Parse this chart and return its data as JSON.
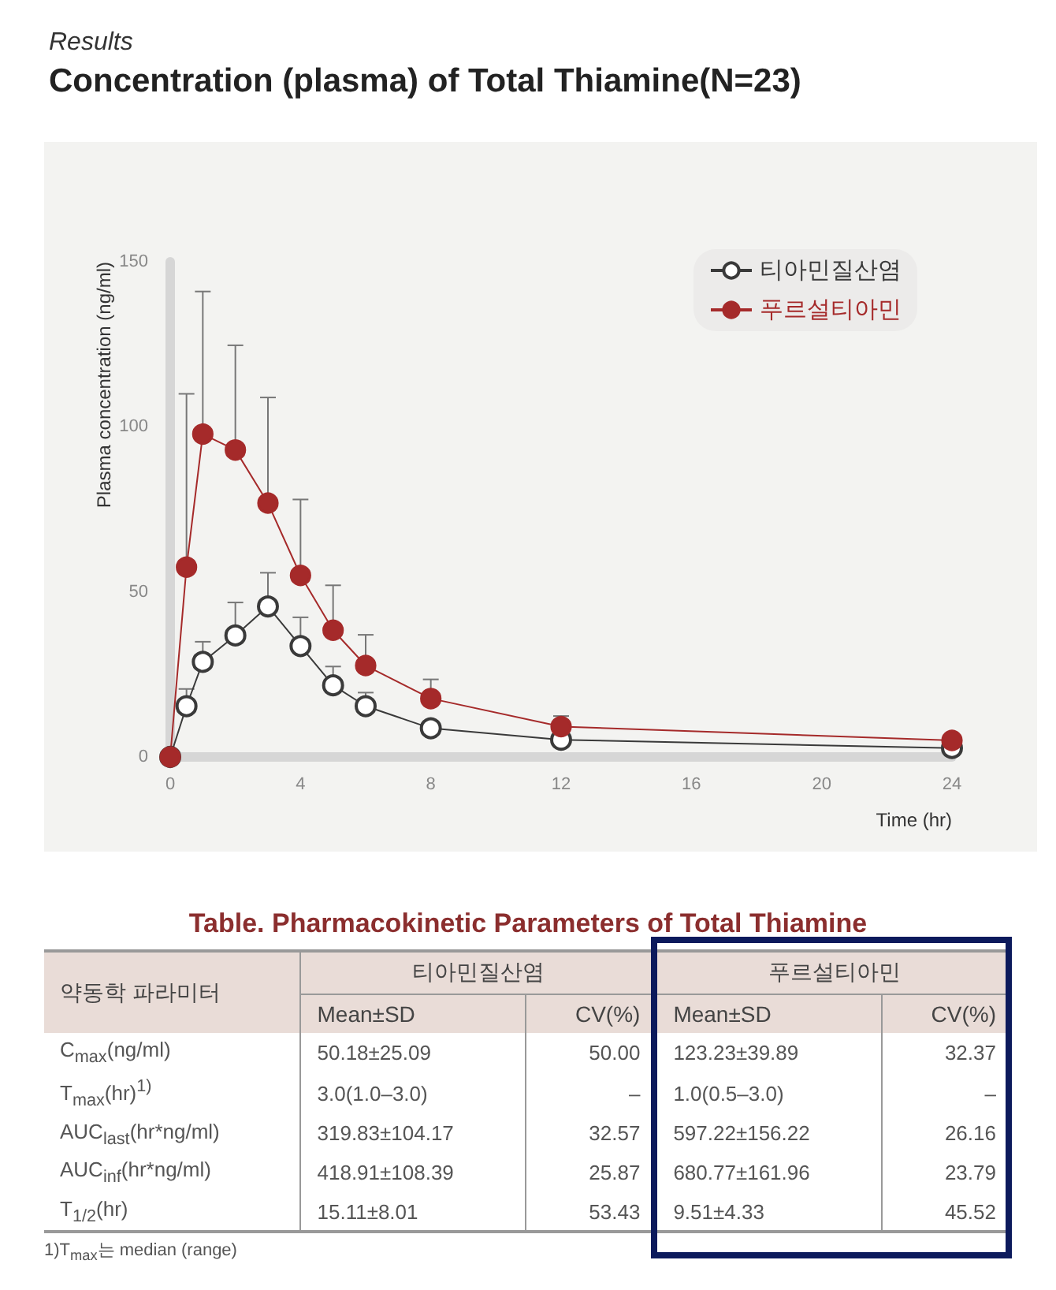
{
  "chart_data": [
    {
      "type": "line",
      "subtitle": "Results",
      "title": "Concentration (plasma) of Total Thiamine(N=23)",
      "xlabel": "Time (hr)",
      "ylabel": "Plasma concentration (ng/ml)",
      "x": [
        0,
        0.5,
        1,
        2,
        3,
        4,
        5,
        6,
        8,
        12,
        24
      ],
      "series": [
        {
          "name": "티아민질산염",
          "color": "#3a3a3a",
          "values": [
            0,
            15.4,
            28.8,
            36.8,
            45.6,
            33.6,
            21.7,
            15.4,
            8.7,
            5.2,
            2.7
          ],
          "errors": [
            null,
            [
              15.4,
              20.6
            ],
            [
              28.8,
              34.9
            ],
            [
              36.8,
              46.8
            ],
            [
              45.6,
              55.8
            ],
            [
              33.6,
              42.3
            ],
            [
              21.7,
              27.4
            ],
            [
              15.4,
              19.5
            ],
            null,
            null,
            null
          ]
        },
        {
          "name": "푸르설티아민",
          "color": "#a52a2a",
          "values": [
            0,
            57.5,
            97.8,
            93,
            76.9,
            55,
            38.4,
            27.7,
            17.7,
            9.2,
            5
          ],
          "errors": [
            null,
            [
              57.5,
              110
            ],
            [
              97.8,
              141
            ],
            [
              93,
              124.7
            ],
            [
              76.9,
              108.9
            ],
            [
              55,
              78
            ],
            [
              38.4,
              52
            ],
            [
              27.7,
              37
            ],
            [
              17.7,
              23.5
            ],
            [
              9.2,
              12.4
            ],
            null
          ]
        }
      ],
      "xlim": [
        0,
        24
      ],
      "xticks": [
        0,
        4,
        8,
        12,
        16,
        20,
        24
      ],
      "ylim": [
        0,
        150
      ],
      "yticks": [
        0,
        50,
        100,
        150
      ],
      "grid": false,
      "legend": "top right",
      "marker": "circle"
    },
    {
      "type": "other",
      "title": "Table. Pharmacokinetic Parameters of Total Thiamine",
      "annotations": [
        "약동학 파라미터",
        "티아민질산염",
        "푸르설티아민",
        "Mean±SD",
        "CV(%)",
        "Mean±SD",
        "CV(%)",
        "C$_{max}$(ng/ml)",
        "50.18±25.09",
        "50.00",
        "123.23±39.89",
        "32.37",
        "T$_{max}$(hr)$^{1)}$",
        "3.0(1.0–3.0)",
        "–",
        "1.0(0.5–3.0)",
        "–",
        "AUC$_{last}$(hr*ng/ml)",
        "319.83±104.17",
        "32.57",
        "597.22±156.22",
        "26.16",
        "AUC$_{inf}$(hr*ng/ml)",
        "418.91±108.39",
        "25.87",
        "680.77±161.96",
        "23.79",
        "T$_{1/2}$(hr)",
        "15.11±8.01",
        "53.43",
        "9.51±4.33",
        "45.52",
        "1)T$_{max}$는 median (range)"
      ]
    }
  ]
}
